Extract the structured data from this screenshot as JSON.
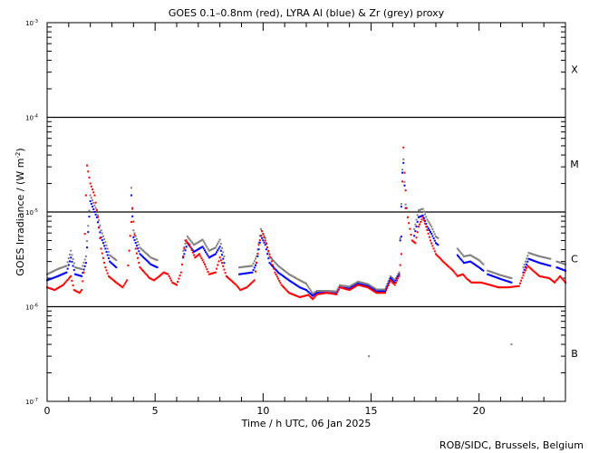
{
  "chart_data": {
    "type": "scatter",
    "title": "GOES 0.1–0.8nm (red), LYRA Al (blue) & Zr (grey) proxy",
    "xlabel": "Time / h UTC, 06 Jan 2025",
    "ylabel": "GOES Irradiance / (W m",
    "ylabel_sup": "-2",
    "ylabel_end": ")",
    "xlim": [
      0,
      24
    ],
    "ylim": [
      1e-07,
      0.001
    ],
    "yscale": "log",
    "xticks": [
      "0",
      "5",
      "10",
      "15",
      "20"
    ],
    "xtick_values": [
      0,
      5,
      10,
      15,
      20
    ],
    "yticks": [
      {
        "base": "10",
        "exp": "-3",
        "value": 0.001
      },
      {
        "base": "10",
        "exp": "-4",
        "value": 0.0001
      },
      {
        "base": "10",
        "exp": "-5",
        "value": 1e-05
      },
      {
        "base": "10",
        "exp": "-6",
        "value": 1e-06
      },
      {
        "base": "10",
        "exp": "-7",
        "value": 1e-07
      }
    ],
    "threshold_lines": [
      0.0001,
      1e-05,
      1e-06
    ],
    "flare_classes": [
      {
        "label": "X",
        "value": 0.00032
      },
      {
        "label": "M",
        "value": 3.2e-05
      },
      {
        "label": "C",
        "value": 3.2e-06
      },
      {
        "label": "B",
        "value": 3.2e-07
      }
    ],
    "series": [
      {
        "name": "GOES 0.1-0.8nm",
        "color": "#ff0000",
        "segments": [
          [
            [
              0,
              1.6e-06
            ],
            [
              0.35,
              1.5e-06
            ],
            [
              0.75,
              1.7e-06
            ],
            [
              1.1,
              2.1e-06
            ],
            [
              1.25,
              1.5e-06
            ],
            [
              1.5,
              1.4e-06
            ],
            [
              1.6,
              1.5e-06
            ],
            [
              1.7,
              2.3e-06
            ],
            [
              1.8,
              1.5e-05
            ],
            [
              1.85,
              3.1e-05
            ],
            [
              2.0,
              2e-05
            ],
            [
              2.2,
              1.5e-05
            ],
            [
              2.35,
              8.8e-06
            ],
            [
              2.5,
              4.1e-06
            ],
            [
              2.7,
              2.6e-06
            ],
            [
              2.85,
              2.1e-06
            ],
            [
              3.2,
              1.8e-06
            ],
            [
              3.5,
              1.6e-06
            ],
            [
              3.7,
              1.9e-06
            ],
            [
              3.85,
              5.6e-06
            ],
            [
              3.95,
              1.1e-05
            ],
            [
              4.1,
              4.1e-06
            ],
            [
              4.3,
              2.6e-06
            ],
            [
              4.75,
              2e-06
            ],
            [
              4.95,
              1.9e-06
            ],
            [
              5.2,
              2.1e-06
            ],
            [
              5.4,
              2.3e-06
            ],
            [
              5.6,
              2.2e-06
            ],
            [
              5.8,
              1.8e-06
            ],
            [
              6.0,
              1.7e-06
            ],
            [
              6.2,
              2.3e-06
            ],
            [
              6.4,
              5e-06
            ],
            [
              6.6,
              4.5e-06
            ],
            [
              6.85,
              3.3e-06
            ],
            [
              7.05,
              3.6e-06
            ],
            [
              7.3,
              2.8e-06
            ],
            [
              7.5,
              2.2e-06
            ],
            [
              7.8,
              2.3e-06
            ],
            [
              8.0,
              3.3e-06
            ],
            [
              8.1,
              2.9e-06
            ],
            [
              8.3,
              2.1e-06
            ],
            [
              8.75,
              1.7e-06
            ],
            [
              8.95,
              1.5e-06
            ],
            [
              9.25,
              1.6e-06
            ],
            [
              9.6,
              1.9e-06
            ],
            [
              9.8,
              4.5e-06
            ],
            [
              9.95,
              6.3e-06
            ],
            [
              10.1,
              5e-06
            ],
            [
              10.35,
              3.3e-06
            ],
            [
              10.55,
              2.3e-06
            ],
            [
              10.85,
              1.7e-06
            ],
            [
              11.2,
              1.4e-06
            ],
            [
              11.7,
              1.26e-06
            ],
            [
              12.1,
              1.33e-06
            ],
            [
              12.3,
              1.2e-06
            ],
            [
              12.5,
              1.35e-06
            ],
            [
              12.95,
              1.4e-06
            ],
            [
              13.4,
              1.35e-06
            ],
            [
              13.55,
              1.6e-06
            ],
            [
              14.0,
              1.5e-06
            ],
            [
              14.4,
              1.7e-06
            ],
            [
              14.85,
              1.6e-06
            ],
            [
              15.25,
              1.4e-06
            ],
            [
              15.65,
              1.4e-06
            ],
            [
              15.9,
              1.9e-06
            ],
            [
              16.1,
              1.7e-06
            ],
            [
              16.3,
              2.1e-06
            ],
            [
              16.4,
              3.6e-06
            ],
            [
              16.45,
              2.1e-05
            ],
            [
              16.5,
              4.8e-05
            ],
            [
              16.55,
              2.6e-05
            ],
            [
              16.65,
              1.1e-05
            ],
            [
              16.7,
              8.8e-06
            ],
            [
              16.9,
              5e-06
            ],
            [
              17.05,
              4.7e-06
            ],
            [
              17.2,
              7e-06
            ],
            [
              17.4,
              8.8e-06
            ],
            [
              17.55,
              7e-06
            ],
            [
              17.75,
              5e-06
            ],
            [
              18.0,
              3.6e-06
            ],
            [
              18.4,
              2.9e-06
            ],
            [
              18.8,
              2.4e-06
            ],
            [
              19.0,
              2.1e-06
            ],
            [
              19.25,
              2.2e-06
            ],
            [
              19.45,
              1.96e-06
            ],
            [
              19.65,
              1.8e-06
            ],
            [
              20.1,
              1.8e-06
            ],
            [
              20.5,
              1.7e-06
            ],
            [
              20.9,
              1.6e-06
            ],
            [
              21.35,
              1.6e-06
            ],
            [
              21.85,
              1.65e-06
            ],
            [
              22.1,
              2.3e-06
            ],
            [
              22.25,
              2.7e-06
            ],
            [
              22.6,
              2.3e-06
            ],
            [
              22.8,
              2.1e-06
            ],
            [
              23.25,
              2e-06
            ],
            [
              23.5,
              1.8e-06
            ],
            [
              23.75,
              2.1e-06
            ],
            [
              24.0,
              1.8e-06
            ]
          ]
        ]
      },
      {
        "name": "LYRA Al proxy",
        "color": "#0000ff",
        "segments": [
          [
            [
              0,
              1.9e-06
            ],
            [
              0.5,
              2.1e-06
            ],
            [
              0.9,
              2.3e-06
            ],
            [
              1.1,
              3.3e-06
            ],
            [
              1.3,
              2.2e-06
            ],
            [
              1.6,
              2.1e-06
            ],
            [
              1.8,
              2.9e-06
            ],
            [
              2.0,
              1.3e-05
            ],
            [
              2.3,
              8.8e-06
            ],
            [
              2.5,
              5.4e-06
            ],
            [
              2.7,
              4.1e-06
            ],
            [
              2.9,
              3e-06
            ],
            [
              3.2,
              2.6e-06
            ]
          ],
          [
            [
              3.9,
              1.5e-05
            ],
            [
              4.0,
              5.4e-06
            ],
            [
              4.3,
              3.6e-06
            ],
            [
              4.8,
              2.8e-06
            ],
            [
              5.1,
              2.6e-06
            ]
          ],
          [
            [
              6.3,
              3.3e-06
            ],
            [
              6.5,
              4.7e-06
            ],
            [
              6.8,
              3.8e-06
            ],
            [
              7.2,
              4.3e-06
            ],
            [
              7.5,
              3.3e-06
            ],
            [
              7.8,
              3.6e-06
            ],
            [
              8.0,
              4.3e-06
            ],
            [
              8.2,
              2.9e-06
            ]
          ],
          [
            [
              8.9,
              2.2e-06
            ],
            [
              9.5,
              2.3e-06
            ],
            [
              9.7,
              2.9e-06
            ],
            [
              9.9,
              5.6e-06
            ],
            [
              10.1,
              4.5e-06
            ],
            [
              10.3,
              2.9e-06
            ],
            [
              10.7,
              2.3e-06
            ],
            [
              11.2,
              1.9e-06
            ],
            [
              11.7,
              1.6e-06
            ],
            [
              12.0,
              1.5e-06
            ],
            [
              12.3,
              1.3e-06
            ],
            [
              12.5,
              1.4e-06
            ],
            [
              12.95,
              1.4e-06
            ],
            [
              13.4,
              1.38e-06
            ],
            [
              13.55,
              1.6e-06
            ],
            [
              14.0,
              1.55e-06
            ],
            [
              14.4,
              1.75e-06
            ],
            [
              14.85,
              1.65e-06
            ],
            [
              15.25,
              1.45e-06
            ],
            [
              15.65,
              1.45e-06
            ],
            [
              15.9,
              2e-06
            ],
            [
              16.1,
              1.8e-06
            ],
            [
              16.3,
              2.2e-06
            ],
            [
              16.45,
              2.6e-05
            ],
            [
              16.5,
              3.3e-05
            ],
            [
              16.6,
              1.1e-05
            ]
          ],
          [
            [
              17.0,
              5.6e-06
            ],
            [
              17.2,
              8.8e-06
            ],
            [
              17.4,
              9.2e-06
            ],
            [
              17.6,
              7e-06
            ],
            [
              17.8,
              5.9e-06
            ],
            [
              18.0,
              4.7e-06
            ],
            [
              18.1,
              4.5e-06
            ]
          ],
          [
            [
              19.0,
              3.5e-06
            ],
            [
              19.3,
              2.9e-06
            ],
            [
              19.6,
              3e-06
            ],
            [
              20.0,
              2.6e-06
            ],
            [
              20.2,
              2.4e-06
            ]
          ],
          [
            [
              20.4,
              2.2e-06
            ],
            [
              21.0,
              1.96e-06
            ],
            [
              21.5,
              1.8e-06
            ]
          ],
          [
            [
              22.05,
              2.3e-06
            ],
            [
              22.3,
              3.2e-06
            ],
            [
              22.8,
              2.9e-06
            ],
            [
              23.3,
              2.7e-06
            ]
          ],
          [
            [
              23.6,
              2.6e-06
            ],
            [
              24.0,
              2.4e-06
            ]
          ]
        ]
      },
      {
        "name": "LYRA Zr proxy",
        "color": "#808080",
        "segments": [
          [
            [
              0,
              2.2e-06
            ],
            [
              0.5,
              2.5e-06
            ],
            [
              0.9,
              2.7e-06
            ],
            [
              1.1,
              3.9e-06
            ],
            [
              1.3,
              2.6e-06
            ],
            [
              1.6,
              2.5e-06
            ],
            [
              1.8,
              3.4e-06
            ],
            [
              2.0,
              1.5e-05
            ],
            [
              2.3,
              1.04e-05
            ],
            [
              2.5,
              6.4e-06
            ],
            [
              2.7,
              4.8e-06
            ],
            [
              2.9,
              3.5e-06
            ],
            [
              3.2,
              3.1e-06
            ]
          ],
          [
            [
              3.9,
              1.8e-05
            ],
            [
              4.0,
              6.4e-06
            ],
            [
              4.3,
              4.2e-06
            ],
            [
              4.8,
              3.3e-06
            ],
            [
              5.1,
              3.1e-06
            ]
          ],
          [
            [
              6.3,
              3.9e-06
            ],
            [
              6.5,
              5.5e-06
            ],
            [
              6.8,
              4.5e-06
            ],
            [
              7.2,
              5.1e-06
            ],
            [
              7.5,
              3.9e-06
            ],
            [
              7.8,
              4.2e-06
            ],
            [
              8.0,
              5.1e-06
            ],
            [
              8.2,
              3.4e-06
            ]
          ],
          [
            [
              8.9,
              2.6e-06
            ],
            [
              9.5,
              2.7e-06
            ],
            [
              9.7,
              3.4e-06
            ],
            [
              9.9,
              6.6e-06
            ],
            [
              10.1,
              5.3e-06
            ],
            [
              10.3,
              3.4e-06
            ],
            [
              10.7,
              2.7e-06
            ],
            [
              11.2,
              2.2e-06
            ],
            [
              11.7,
              1.9e-06
            ],
            [
              12.0,
              1.75e-06
            ],
            [
              12.3,
              1.37e-06
            ],
            [
              12.5,
              1.47e-06
            ],
            [
              12.95,
              1.47e-06
            ],
            [
              13.4,
              1.45e-06
            ],
            [
              13.55,
              1.68e-06
            ],
            [
              14.0,
              1.63e-06
            ],
            [
              14.4,
              1.84e-06
            ],
            [
              14.85,
              1.73e-06
            ],
            [
              15.25,
              1.52e-06
            ],
            [
              15.65,
              1.52e-06
            ],
            [
              15.9,
              2.1e-06
            ],
            [
              16.1,
              1.9e-06
            ],
            [
              16.3,
              2.3e-06
            ],
            [
              16.45,
              2.8e-05
            ],
            [
              16.5,
              3.6e-05
            ],
            [
              16.6,
              1.2e-05
            ]
          ],
          [
            [
              17.0,
              6.6e-06
            ],
            [
              17.2,
              1.04e-05
            ],
            [
              17.4,
              1.08e-05
            ],
            [
              17.6,
              8.3e-06
            ],
            [
              17.8,
              7e-06
            ],
            [
              18.0,
              5.5e-06
            ],
            [
              18.1,
              5.3e-06
            ]
          ],
          [
            [
              19.0,
              4.1e-06
            ],
            [
              19.3,
              3.4e-06
            ],
            [
              19.6,
              3.5e-06
            ],
            [
              20.0,
              3.1e-06
            ],
            [
              20.2,
              2.8e-06
            ]
          ],
          [
            [
              20.4,
              2.4e-06
            ],
            [
              21.0,
              2.15e-06
            ],
            [
              21.5,
              2e-06
            ]
          ],
          [
            [
              22.05,
              2.6e-06
            ],
            [
              22.3,
              3.7e-06
            ],
            [
              22.8,
              3.4e-06
            ],
            [
              23.3,
              3.2e-06
            ]
          ],
          [
            [
              23.6,
              3e-06
            ],
            [
              24.0,
              2.8e-06
            ]
          ]
        ]
      }
    ],
    "outliers": [
      {
        "x": 14.9,
        "y": 3e-07,
        "color": "#808080"
      },
      {
        "x": 21.5,
        "y": 4e-07,
        "color": "#808080"
      },
      {
        "x": 16.4,
        "y": 5.5e-06,
        "color": "#0000ff"
      }
    ],
    "credit": "ROB/SIDC, Brussels, Belgium"
  }
}
